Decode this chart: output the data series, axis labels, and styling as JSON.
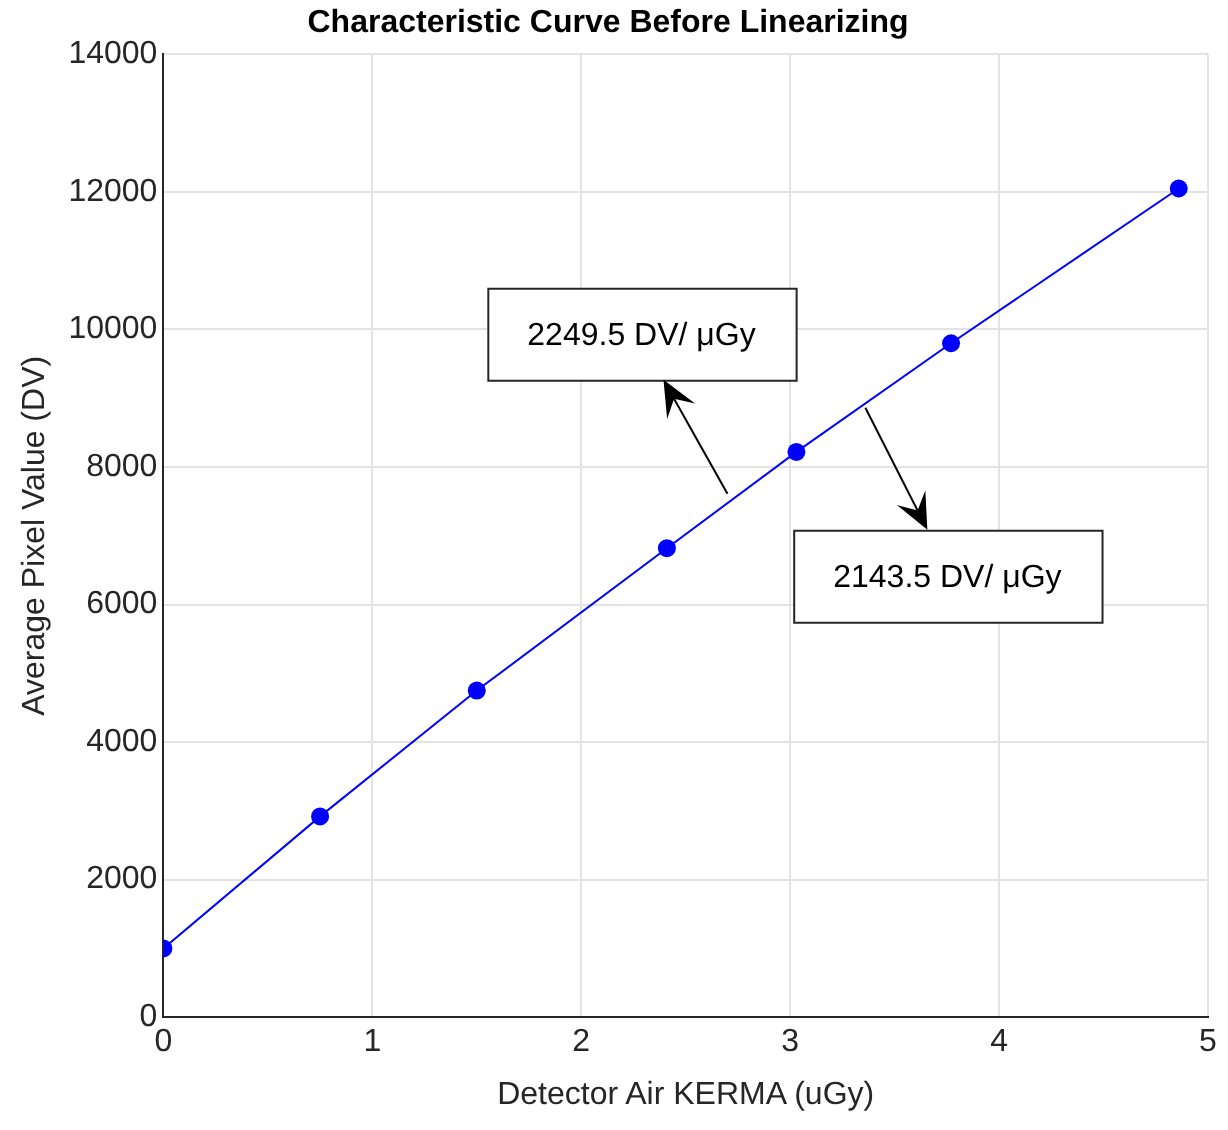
{
  "chart_data": {
    "type": "line",
    "title": "Characteristic Curve Before Linearizing",
    "xlabel": "Detector Air KERMA (uGy)",
    "ylabel": "Average Pixel Value (DV)",
    "x": [
      0,
      0.75,
      1.5,
      2.41,
      3.03,
      3.77,
      4.86
    ],
    "series": [
      {
        "color": "#0000ff",
        "values": [
          1000,
          2920,
          4750,
          6820,
          8220,
          9800,
          12050
        ]
      }
    ],
    "xlim": [
      0,
      5
    ],
    "xticks": [
      0,
      1,
      2,
      3,
      4,
      5
    ],
    "ylim": [
      0,
      14000
    ],
    "yticks": [
      0,
      2000,
      4000,
      6000,
      8000,
      10000,
      12000,
      14000
    ],
    "grid": true,
    "marker": "circle",
    "line_style": "solid",
    "legend": false,
    "annotations": [
      "2249.5 DV/ μGy",
      "2143.5 DV/ μGy"
    ]
  }
}
